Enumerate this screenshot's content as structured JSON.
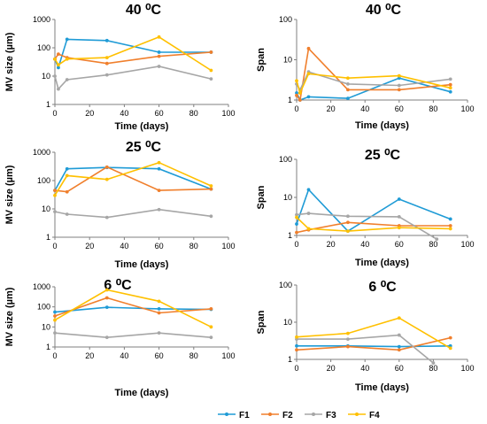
{
  "colors": {
    "F1": "#1f9bd6",
    "F2": "#f07f2c",
    "F3": "#a6a6a6",
    "F4": "#ffc000"
  },
  "legend": [
    "F1",
    "F2",
    "F3",
    "F4"
  ],
  "chart_data": [
    {
      "id": "mv40",
      "type": "line",
      "title": "40 ⁰C",
      "xlabel": "Time (days)",
      "ylabel": "MV size (µm)",
      "yscale": "log",
      "ylim": [
        1,
        1000
      ],
      "xlim": [
        0,
        100
      ],
      "yticks": [
        "1",
        "10",
        "100",
        "1000"
      ],
      "xticks": [
        "0",
        "20",
        "40",
        "60",
        "80",
        "100"
      ],
      "series": [
        {
          "name": "F1",
          "x": [
            0,
            2,
            7,
            30,
            60,
            90
          ],
          "y": [
            40,
            20,
            200,
            180,
            70,
            70
          ]
        },
        {
          "name": "F2",
          "x": [
            0,
            2,
            7,
            30,
            60,
            90
          ],
          "y": [
            40,
            60,
            45,
            28,
            50,
            70
          ]
        },
        {
          "name": "F3",
          "x": [
            0,
            2,
            7,
            30,
            60,
            90
          ],
          "y": [
            10,
            3.5,
            7.5,
            11,
            22,
            8
          ]
        },
        {
          "name": "F4",
          "x": [
            0,
            2,
            7,
            30,
            60,
            90
          ],
          "y": [
            40,
            25,
            40,
            45,
            240,
            16
          ]
        }
      ]
    },
    {
      "id": "span40",
      "type": "line",
      "title": "40 ⁰C",
      "xlabel": "Time (days)",
      "ylabel": "Span",
      "yscale": "log",
      "ylim": [
        1,
        100
      ],
      "xlim": [
        0,
        100
      ],
      "yticks": [
        "1",
        "10",
        "100"
      ],
      "xticks": [
        "0",
        "20",
        "40",
        "60",
        "80",
        "100"
      ],
      "series": [
        {
          "name": "F1",
          "x": [
            0,
            2,
            7,
            30,
            60,
            90
          ],
          "y": [
            1.5,
            1.0,
            1.2,
            1.1,
            3.5,
            1.6
          ]
        },
        {
          "name": "F2",
          "x": [
            0,
            2,
            7,
            30,
            60,
            90
          ],
          "y": [
            1.3,
            1.0,
            19,
            1.8,
            1.8,
            2.4
          ]
        },
        {
          "name": "F3",
          "x": [
            0,
            2,
            7,
            30,
            60,
            90
          ],
          "y": [
            2.5,
            1.8,
            5.0,
            2.5,
            2.3,
            3.3
          ]
        },
        {
          "name": "F4",
          "x": [
            0,
            2,
            7,
            30,
            60,
            90
          ],
          "y": [
            3.0,
            1.5,
            4.5,
            3.5,
            4.0,
            2.0
          ]
        }
      ]
    },
    {
      "id": "mv25",
      "type": "line",
      "title": "25 ⁰C",
      "xlabel": "Time (days)",
      "ylabel": "MV size (µm)",
      "yscale": "log",
      "ylim": [
        1,
        1000
      ],
      "xlim": [
        0,
        100
      ],
      "yticks": [
        "1",
        "10",
        "100",
        "1000"
      ],
      "xticks": [
        "0",
        "20",
        "40",
        "60",
        "80",
        "100"
      ],
      "series": [
        {
          "name": "F1",
          "x": [
            0,
            7,
            30,
            60,
            90
          ],
          "y": [
            45,
            260,
            290,
            260,
            50
          ]
        },
        {
          "name": "F2",
          "x": [
            0,
            7,
            30,
            60,
            90
          ],
          "y": [
            45,
            40,
            300,
            45,
            50
          ]
        },
        {
          "name": "F3",
          "x": [
            0,
            7,
            30,
            60,
            90
          ],
          "y": [
            8,
            6.5,
            5,
            9.5,
            5.5
          ]
        },
        {
          "name": "F4",
          "x": [
            0,
            7,
            30,
            60,
            90
          ],
          "y": [
            30,
            150,
            110,
            430,
            65
          ]
        }
      ]
    },
    {
      "id": "span25",
      "type": "line",
      "title": "25 ⁰C",
      "xlabel": "Time (days)",
      "ylabel": "Span",
      "yscale": "log",
      "ylim": [
        1,
        100
      ],
      "xlim": [
        0,
        100
      ],
      "yticks": [
        "1",
        "10",
        "100"
      ],
      "xticks": [
        "0",
        "20",
        "40",
        "60",
        "80",
        "100"
      ],
      "series": [
        {
          "name": "F1",
          "x": [
            0,
            7,
            30,
            60,
            90
          ],
          "y": [
            2.0,
            16,
            1.3,
            9.0,
            2.7
          ]
        },
        {
          "name": "F2",
          "x": [
            0,
            7,
            30,
            60,
            90
          ],
          "y": [
            1.2,
            1.4,
            2.2,
            1.8,
            1.8
          ]
        },
        {
          "name": "F3",
          "x": [
            0,
            7,
            30,
            60,
            82
          ],
          "y": [
            3.5,
            3.8,
            3.2,
            3.1,
            0.8
          ]
        },
        {
          "name": "F4",
          "x": [
            0,
            7,
            30,
            60,
            90
          ],
          "y": [
            3.0,
            1.5,
            1.3,
            1.6,
            1.5
          ]
        }
      ]
    },
    {
      "id": "mv6",
      "type": "line",
      "title": "6 ⁰C",
      "xlabel": "Time (days)",
      "ylabel": "MV size (µm)",
      "yscale": "log",
      "ylim": [
        1,
        1000
      ],
      "xlim": [
        0,
        100
      ],
      "yticks": [
        "1",
        "10",
        "100",
        "1000"
      ],
      "xticks": [
        "0",
        "20",
        "40",
        "60",
        "80",
        "100"
      ],
      "series": [
        {
          "name": "F1",
          "x": [
            0,
            30,
            60,
            90
          ],
          "y": [
            55,
            95,
            80,
            75
          ]
        },
        {
          "name": "F2",
          "x": [
            0,
            30,
            60,
            90
          ],
          "y": [
            35,
            280,
            50,
            80
          ]
        },
        {
          "name": "F3",
          "x": [
            0,
            30,
            60,
            90
          ],
          "y": [
            5,
            3,
            5,
            3
          ]
        },
        {
          "name": "F4",
          "x": [
            0,
            30,
            60,
            90
          ],
          "y": [
            22,
            700,
            190,
            10
          ]
        }
      ]
    },
    {
      "id": "span6",
      "type": "line",
      "title": "6 ⁰C",
      "xlabel": "Time (days)",
      "ylabel": "Span",
      "yscale": "log",
      "ylim": [
        1,
        100
      ],
      "xlim": [
        0,
        100
      ],
      "yticks": [
        "1",
        "10",
        "100"
      ],
      "xticks": [
        "0",
        "20",
        "40",
        "60",
        "80",
        "100"
      ],
      "series": [
        {
          "name": "F1",
          "x": [
            0,
            30,
            60,
            90
          ],
          "y": [
            2.3,
            2.3,
            2.2,
            2.3
          ]
        },
        {
          "name": "F2",
          "x": [
            0,
            30,
            60,
            90
          ],
          "y": [
            1.8,
            2.2,
            1.8,
            3.8
          ]
        },
        {
          "name": "F3",
          "x": [
            0,
            30,
            60,
            80
          ],
          "y": [
            3.5,
            3.5,
            4.5,
            0.8
          ]
        },
        {
          "name": "F4",
          "x": [
            0,
            30,
            60,
            90
          ],
          "y": [
            4.0,
            5.0,
            13,
            2.0
          ]
        }
      ]
    }
  ]
}
